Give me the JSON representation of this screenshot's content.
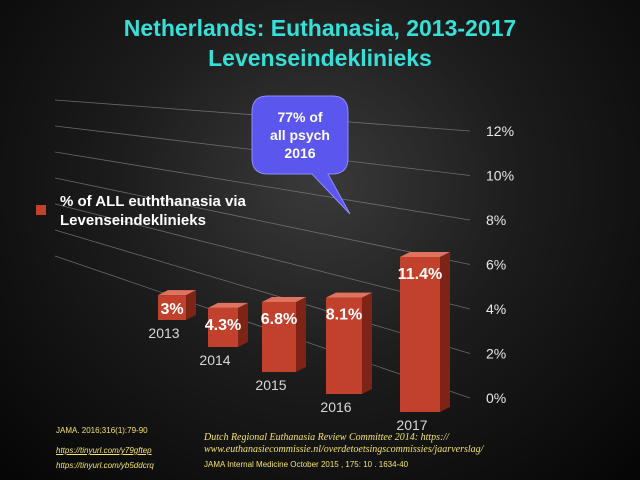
{
  "title_line1": "Netherlands:  Euthanasia, 2013-2017",
  "title_line2": "Levenseindeklinieks",
  "legend_label": "% of ALL euththanasia via Levenseindeklinieks",
  "callout": {
    "line1": "77% of",
    "line2": "all psych",
    "line3": "2016"
  },
  "sources": {
    "jama": "JAMA. 2016;316(1):79-90",
    "link1": "https://tinyurl.com/y79gftep",
    "link2": "https://tinyurl.com/yb5ddcrq",
    "review_line1": "Dutch Regional Euthanasia Review Committee 2014: https://",
    "review_line2": "www.euthanasiecommissie.nl/overdetoetsingscommissies/jaarverslag/",
    "internal_med": "JAMA Internal Medicine October 2015 , 175: 10 . 1634-40"
  },
  "colors": {
    "bar": "#c2412d",
    "bar_side": "#7d2416",
    "bar_top": "#e0735e",
    "title": "#35e0d8",
    "callout": "#5a56ee"
  },
  "chart_data": {
    "type": "bar",
    "categories": [
      "2013",
      "2014",
      "2015",
      "2016",
      "2017"
    ],
    "values": [
      3,
      4.3,
      6.8,
      8.1,
      11.4
    ],
    "data_labels": [
      "3%",
      "4.3%",
      "6.8%",
      "8.1%",
      "11.4%"
    ],
    "ylim": [
      0,
      12
    ],
    "yticks": [
      "0%",
      "2%",
      "4%",
      "6%",
      "8%",
      "10%",
      "12%"
    ],
    "grid": true,
    "legend_position": "left"
  }
}
